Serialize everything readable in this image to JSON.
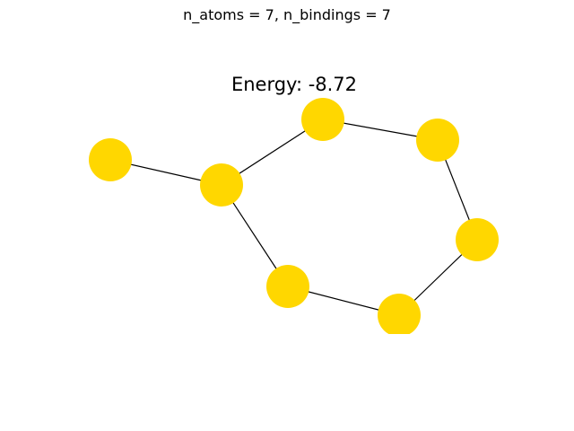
{
  "figure": {
    "suptitle": "n_atoms = 7, n_bindings = 7",
    "title": "Energy: -8.72"
  },
  "graph": {
    "node_color": "#ffd700",
    "edge_color": "#000000",
    "node_count": 7,
    "edges": [
      [
        "left",
        "left-center"
      ],
      [
        "left-center",
        "top-middle"
      ],
      [
        "top-middle",
        "top-right"
      ],
      [
        "top-right",
        "right"
      ],
      [
        "right",
        "bottom-right"
      ],
      [
        "bottom-right",
        "bottom-middle"
      ],
      [
        "bottom-middle",
        "left-center"
      ]
    ],
    "nodes": [
      "left",
      "left-center",
      "top-middle",
      "top-right",
      "right",
      "bottom-right",
      "bottom-middle"
    ]
  }
}
